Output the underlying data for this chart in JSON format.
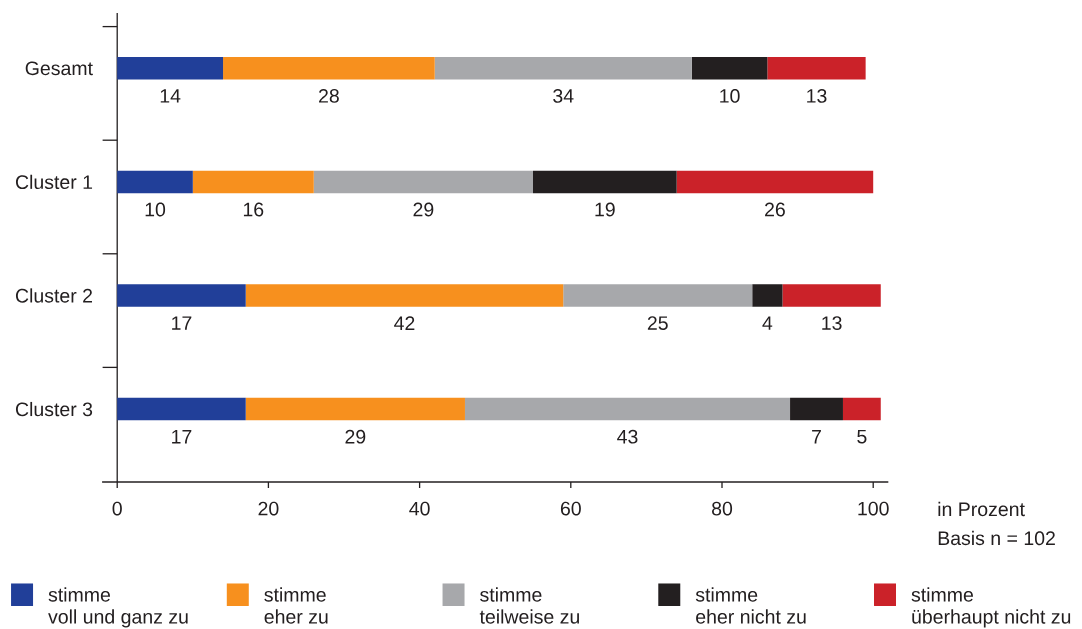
{
  "chart_data": {
    "type": "bar",
    "orientation": "horizontal",
    "stacked": true,
    "categories": [
      "Gesamt",
      "Cluster 1",
      "Cluster 2",
      "Cluster 3"
    ],
    "series": [
      {
        "name": "stimme voll und ganz zu",
        "color": "#213f99",
        "values": [
          14,
          10,
          17,
          17
        ]
      },
      {
        "name": "stimme eher zu",
        "color": "#f7901e",
        "values": [
          28,
          16,
          42,
          29
        ]
      },
      {
        "name": "stimme teilweise zu",
        "color": "#a7a8ab",
        "values": [
          34,
          29,
          25,
          43
        ]
      },
      {
        "name": "stimme eher nicht zu",
        "color": "#231f20",
        "values": [
          10,
          19,
          4,
          7
        ]
      },
      {
        "name": "stimme überhaupt nicht zu",
        "color": "#cb2229",
        "values": [
          13,
          26,
          13,
          5
        ]
      }
    ],
    "xlim": [
      -2,
      102
    ],
    "xticks": [
      0,
      20,
      40,
      60,
      80,
      100
    ],
    "xlabel": "in Prozent",
    "annotations": [
      "Basis n = 102"
    ],
    "data_labels": true,
    "legend": "bottom"
  }
}
